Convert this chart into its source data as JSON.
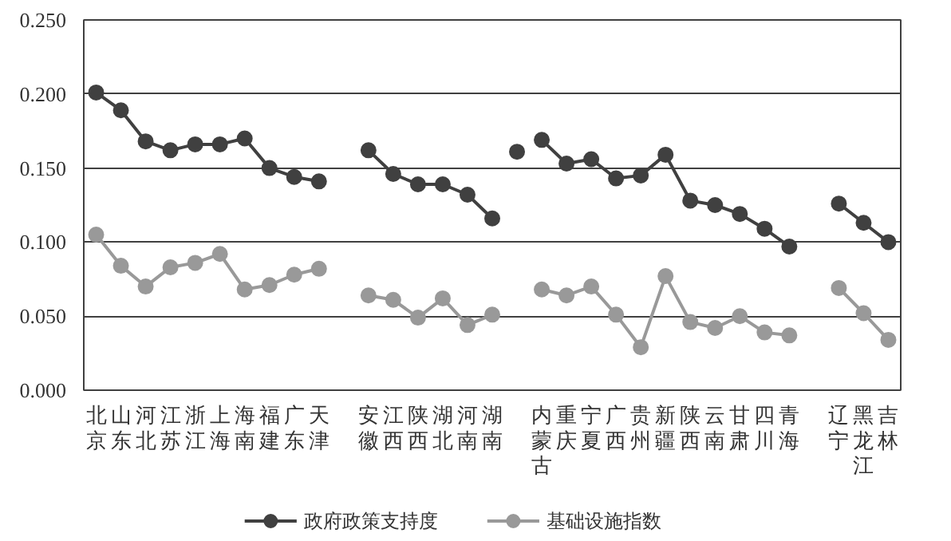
{
  "chart_data": {
    "type": "line",
    "categories": [
      "北京",
      "山东",
      "河北",
      "江苏",
      "浙江",
      "上海",
      "海南",
      "福建",
      "广东",
      "天津",
      null,
      "安徽",
      "江西",
      "陕西",
      "湖北",
      "河南",
      "湖南",
      null,
      "内蒙古",
      "重庆",
      "宁夏",
      "广西",
      "贵州",
      "新疆",
      "陕西",
      "云南",
      "甘肃",
      "四川",
      "青海",
      null,
      "辽宁",
      "黑龙江",
      "吉林"
    ],
    "series": [
      {
        "name": "政府政策支持度",
        "color": "#404040",
        "values": [
          0.201,
          0.189,
          0.168,
          0.162,
          0.166,
          0.166,
          0.17,
          0.15,
          0.144,
          0.141,
          null,
          0.162,
          0.146,
          0.139,
          0.139,
          0.132,
          0.116,
          null,
          0.169,
          0.153,
          0.156,
          0.143,
          0.145,
          0.159,
          0.128,
          0.125,
          0.119,
          0.109,
          0.097,
          null,
          0.126,
          0.113,
          0.1
        ]
      },
      {
        "name": "基础设施指数",
        "color": "#999999",
        "values": [
          0.105,
          0.084,
          0.07,
          0.083,
          0.086,
          0.092,
          0.068,
          0.071,
          0.078,
          0.082,
          null,
          0.064,
          0.061,
          0.049,
          0.062,
          0.044,
          0.051,
          null,
          0.068,
          0.064,
          0.07,
          0.051,
          0.029,
          0.077,
          0.046,
          0.042,
          0.05,
          0.039,
          0.037,
          null,
          0.069,
          0.052,
          0.034
        ]
      },
      {
        "type": "scatter",
        "color": "#404040",
        "values": [
          null,
          null,
          null,
          null,
          null,
          null,
          null,
          null,
          null,
          null,
          null,
          null,
          null,
          null,
          null,
          null,
          null,
          0.161,
          null,
          null,
          null,
          null,
          null,
          null,
          null,
          null,
          null,
          null,
          null,
          null,
          null,
          null,
          null
        ]
      }
    ],
    "ylim": [
      0,
      0.25
    ],
    "yticks": [
      {
        "value": 0,
        "label": "0.000"
      },
      {
        "value": 0.05,
        "label": "0.050"
      },
      {
        "value": 0.1,
        "label": "0.100"
      },
      {
        "value": 0.15,
        "label": "0.150"
      },
      {
        "value": 0.2,
        "label": "0.200"
      },
      {
        "value": 0.25,
        "label": "0.250"
      }
    ],
    "grid": "y",
    "legend": "bottom",
    "marker": "circle"
  }
}
